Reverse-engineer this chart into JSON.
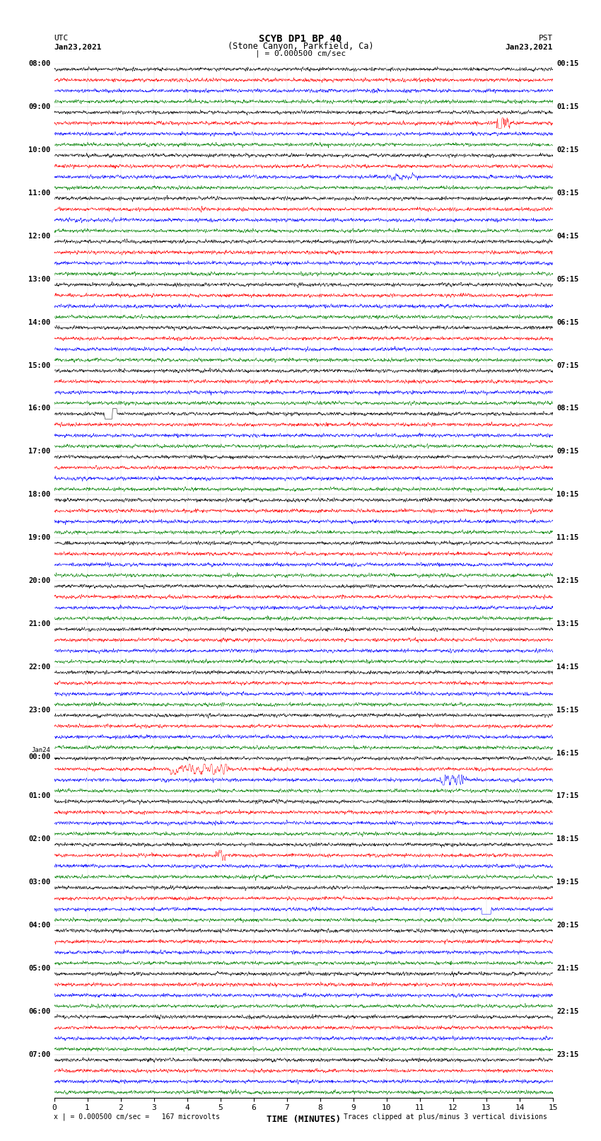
{
  "title_line1": "SCYB DP1 BP 40",
  "title_line2": "(Stone Canyon, Parkfield, Ca)",
  "scale_label": "| = 0.000500 cm/sec",
  "bottom_left": "x | = 0.000500 cm/sec =   167 microvolts",
  "bottom_right": "Traces clipped at plus/minus 3 vertical divisions",
  "utc_label": "UTC",
  "utc_date": "Jan23,2021",
  "pst_label": "PST",
  "pst_date": "Jan23,2021",
  "xlabel": "TIME (MINUTES)",
  "left_times": [
    "08:00",
    "09:00",
    "10:00",
    "11:00",
    "12:00",
    "13:00",
    "14:00",
    "15:00",
    "16:00",
    "17:00",
    "18:00",
    "19:00",
    "20:00",
    "21:00",
    "22:00",
    "23:00",
    "Jan24\n00:00",
    "01:00",
    "02:00",
    "03:00",
    "04:00",
    "05:00",
    "06:00",
    "07:00"
  ],
  "right_times": [
    "00:15",
    "01:15",
    "02:15",
    "03:15",
    "04:15",
    "05:15",
    "06:15",
    "07:15",
    "08:15",
    "09:15",
    "10:15",
    "11:15",
    "12:15",
    "13:15",
    "14:15",
    "15:15",
    "16:15",
    "17:15",
    "18:15",
    "19:15",
    "20:15",
    "21:15",
    "22:15",
    "23:15"
  ],
  "colors": [
    "black",
    "red",
    "blue",
    "green"
  ],
  "n_rows": 24,
  "traces_per_row": 4,
  "minutes": 15,
  "bg_color": "white",
  "trace_amplitude": 0.12,
  "seed": 42,
  "fig_width": 8.5,
  "fig_height": 16.13,
  "dpi": 100
}
